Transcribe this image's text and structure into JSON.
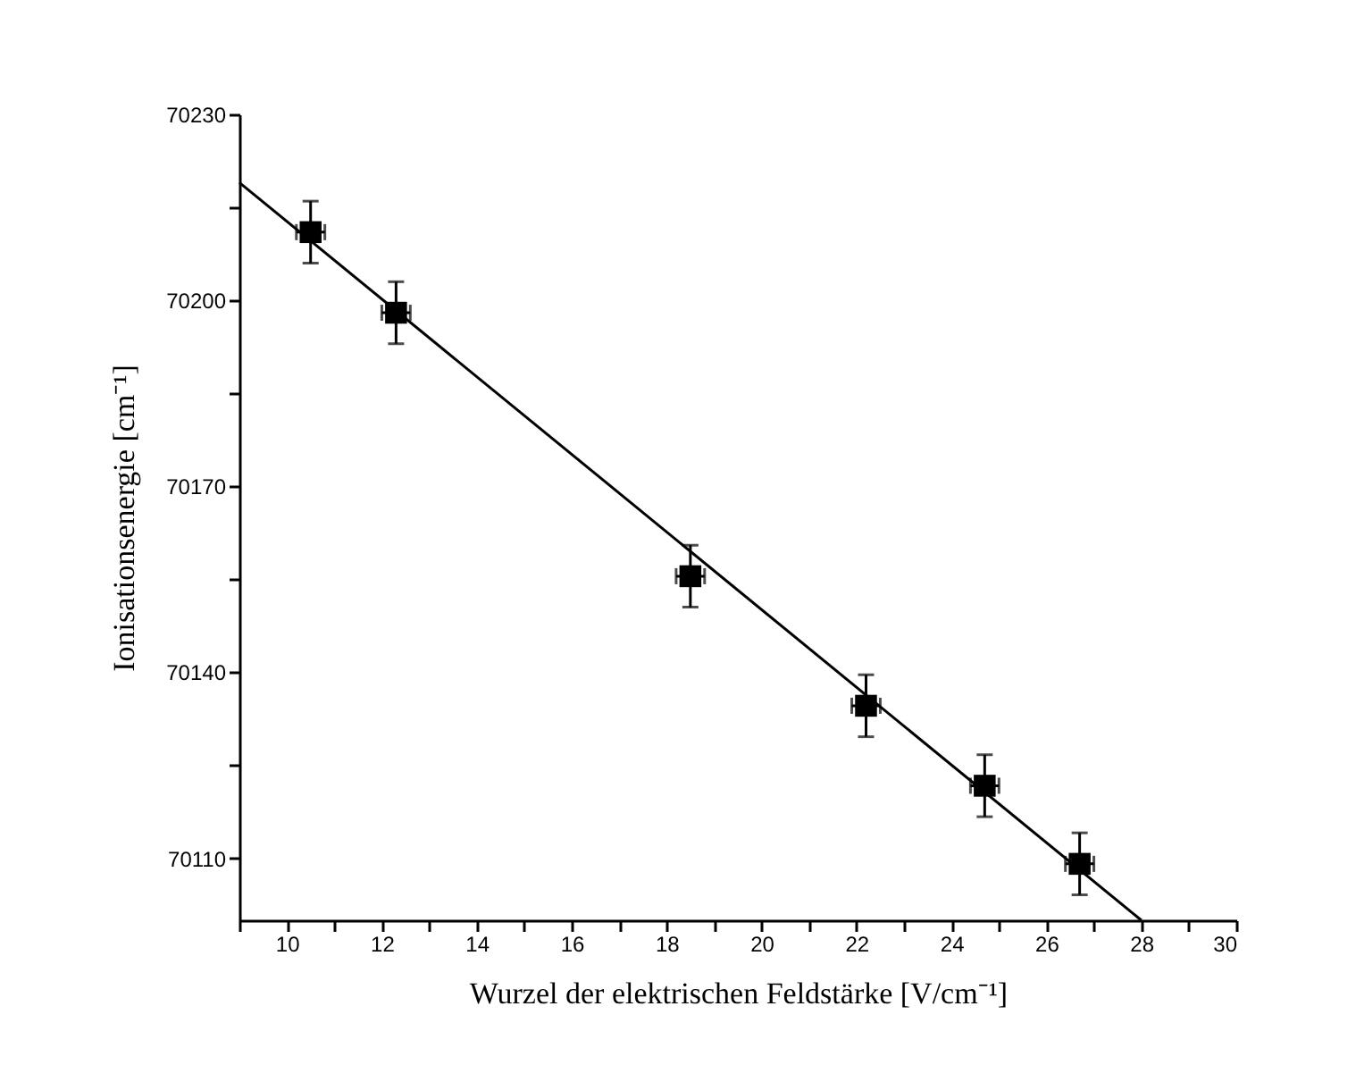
{
  "chart_data": {
    "type": "scatter",
    "xlabel": "Wurzel der elektrischen Feldstärke [V/cm⁻¹]",
    "ylabel": "Ionisationsenergie [cm⁻¹]",
    "marker": "square",
    "grid": false,
    "xlim": [
      9,
      30
    ],
    "ylim": [
      70100,
      70230
    ],
    "xticks": [
      {
        "value": 9,
        "label": null
      },
      10,
      {
        "value": 11,
        "label": null
      },
      12,
      {
        "value": 13,
        "label": null
      },
      14,
      {
        "value": 15,
        "label": null
      },
      16,
      {
        "value": 17,
        "label": null
      },
      18,
      {
        "value": 19,
        "label": null
      },
      20,
      {
        "value": 21,
        "label": null
      },
      22,
      {
        "value": 23,
        "label": null
      },
      24,
      {
        "value": 25,
        "label": null
      },
      26,
      {
        "value": 27,
        "label": null
      },
      28,
      {
        "value": 29,
        "label": null
      },
      30
    ],
    "yticks": [
      70110,
      {
        "value": 70125,
        "label": null
      },
      70140,
      {
        "value": 70155,
        "label": null
      },
      70170,
      {
        "value": 70185,
        "label": null
      },
      70200,
      {
        "value": 70215,
        "label": null
      },
      70230
    ],
    "series": [
      {
        "color": "#000000",
        "x": [
          10.5,
          12.3,
          18.5,
          22.2,
          24.7,
          26.7
        ],
        "values": [
          70211,
          70198,
          70155.5,
          70134.6,
          70121.7,
          70109.1
        ],
        "errors": [
          5,
          5,
          5,
          5,
          5,
          5
        ],
        "xerrors": [
          0.3,
          0.3,
          0.3,
          0.3,
          0.3,
          0.3
        ]
      },
      {
        "type": "line",
        "marker": "none",
        "color": "#000000",
        "x": [
          9,
          28
        ],
        "values": [
          70219,
          70100
        ]
      }
    ]
  }
}
